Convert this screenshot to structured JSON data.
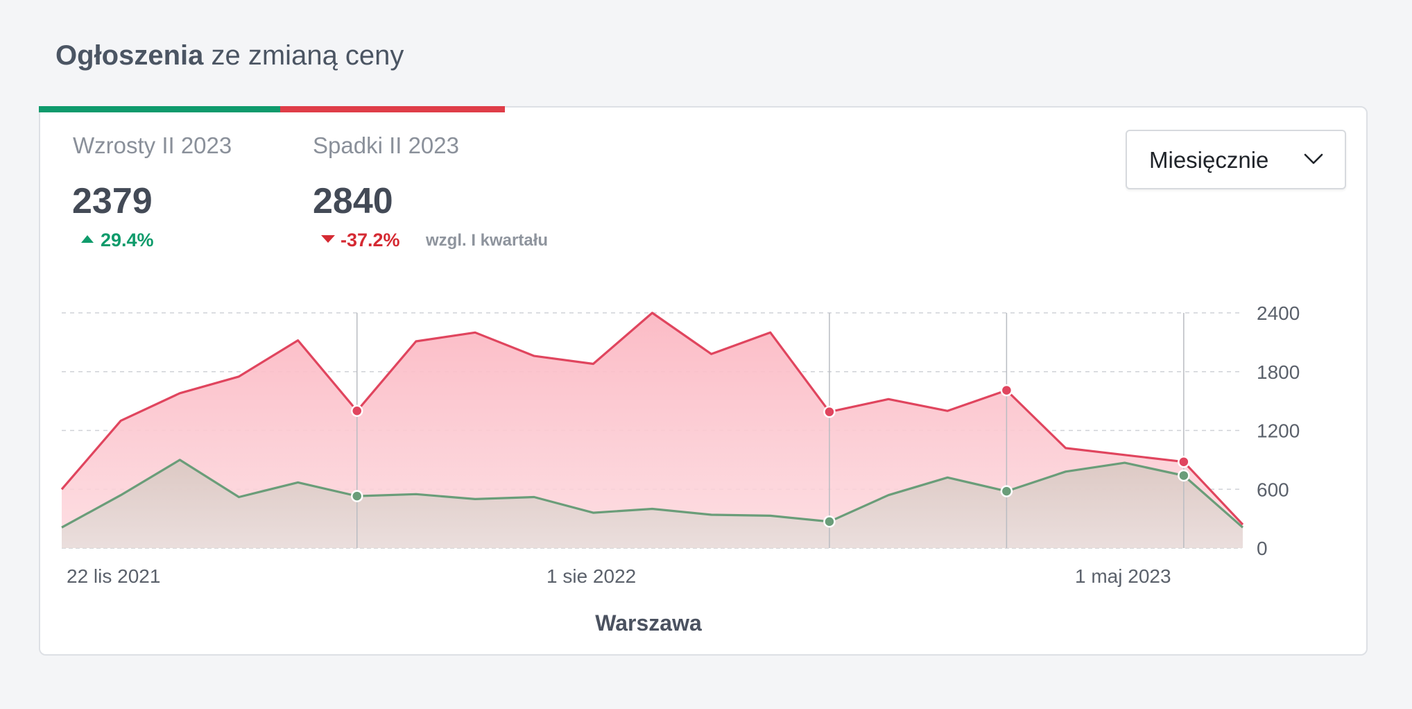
{
  "header": {
    "title_bold": "Ogłoszenia",
    "title_rest": " ze zmianą ceny"
  },
  "stats": {
    "increase": {
      "label": "Wzrosty II 2023",
      "value": "2379",
      "delta": "29.4%"
    },
    "decrease": {
      "label": "Spadki II 2023",
      "value": "2840",
      "delta": "-37.2%"
    },
    "compare_note": "wzgl. I kwartału"
  },
  "period_select": {
    "selected": "Miesięcznie"
  },
  "colors": {
    "increase": "#0e9a6c",
    "decrease": "#df3d48",
    "increase_line": "#6a9d79",
    "decrease_line": "#e0455e"
  },
  "chart_data": {
    "type": "area",
    "xlabel": "Warszawa",
    "x_tick_labels": [
      "22 lis 2021",
      "1 sie 2022",
      "1 maj 2023"
    ],
    "y_ticks": [
      0,
      600,
      1200,
      1800,
      2400
    ],
    "ylim": [
      0,
      2400
    ],
    "y_axis_side": "right",
    "grid": true,
    "series": [
      {
        "role": "decrease",
        "values": [
          600,
          1300,
          1580,
          1750,
          2120,
          1400,
          2110,
          2200,
          1960,
          1880,
          2400,
          1980,
          2200,
          1390,
          1520,
          1400,
          1610,
          1020,
          950,
          880,
          240
        ],
        "markers": [
          5,
          13,
          16,
          19
        ]
      },
      {
        "role": "increase",
        "values": [
          210,
          540,
          900,
          520,
          670,
          530,
          550,
          500,
          520,
          360,
          400,
          340,
          330,
          270,
          540,
          720,
          580,
          780,
          870,
          740,
          210
        ],
        "markers": [
          5,
          13,
          16,
          19
        ]
      }
    ],
    "vertical_markers": [
      5,
      13,
      16,
      19
    ]
  }
}
